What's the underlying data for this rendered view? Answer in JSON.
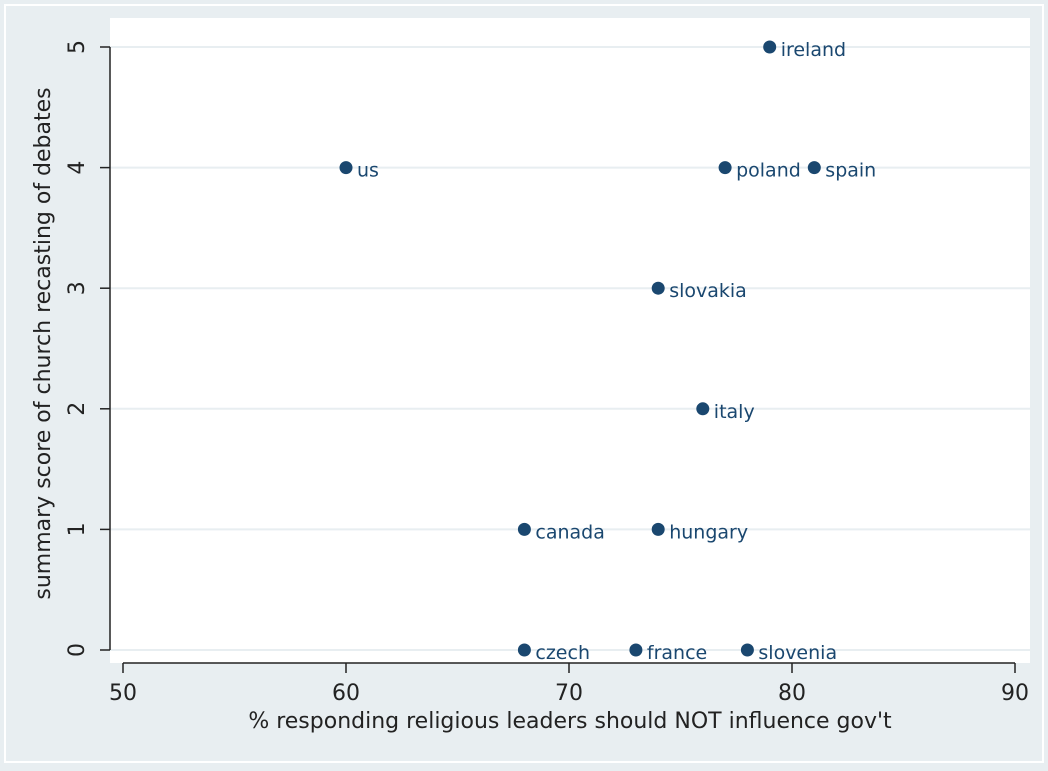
{
  "chart_data": {
    "type": "scatter",
    "xlabel": "%  responding religious leaders should NOT influence gov't",
    "ylabel": "summary score of church recasting of debates",
    "xlim": [
      50,
      90
    ],
    "ylim": [
      0,
      5
    ],
    "x_ticks": [
      50,
      60,
      70,
      80,
      90
    ],
    "y_ticks": [
      0,
      1,
      2,
      3,
      4,
      5
    ],
    "grid": "horizontal",
    "point_color": "#1a476f",
    "points": [
      {
        "label": "ireland",
        "x": 79,
        "y": 5
      },
      {
        "label": "us",
        "x": 60,
        "y": 4
      },
      {
        "label": "poland",
        "x": 77,
        "y": 4
      },
      {
        "label": "spain",
        "x": 81,
        "y": 4
      },
      {
        "label": "slovakia",
        "x": 74,
        "y": 3
      },
      {
        "label": "italy",
        "x": 76,
        "y": 2
      },
      {
        "label": "canada",
        "x": 68,
        "y": 1
      },
      {
        "label": "hungary",
        "x": 74,
        "y": 1
      },
      {
        "label": "czech",
        "x": 68,
        "y": 0
      },
      {
        "label": "france",
        "x": 73,
        "y": 0
      },
      {
        "label": "slovenia",
        "x": 78,
        "y": 0
      }
    ]
  }
}
